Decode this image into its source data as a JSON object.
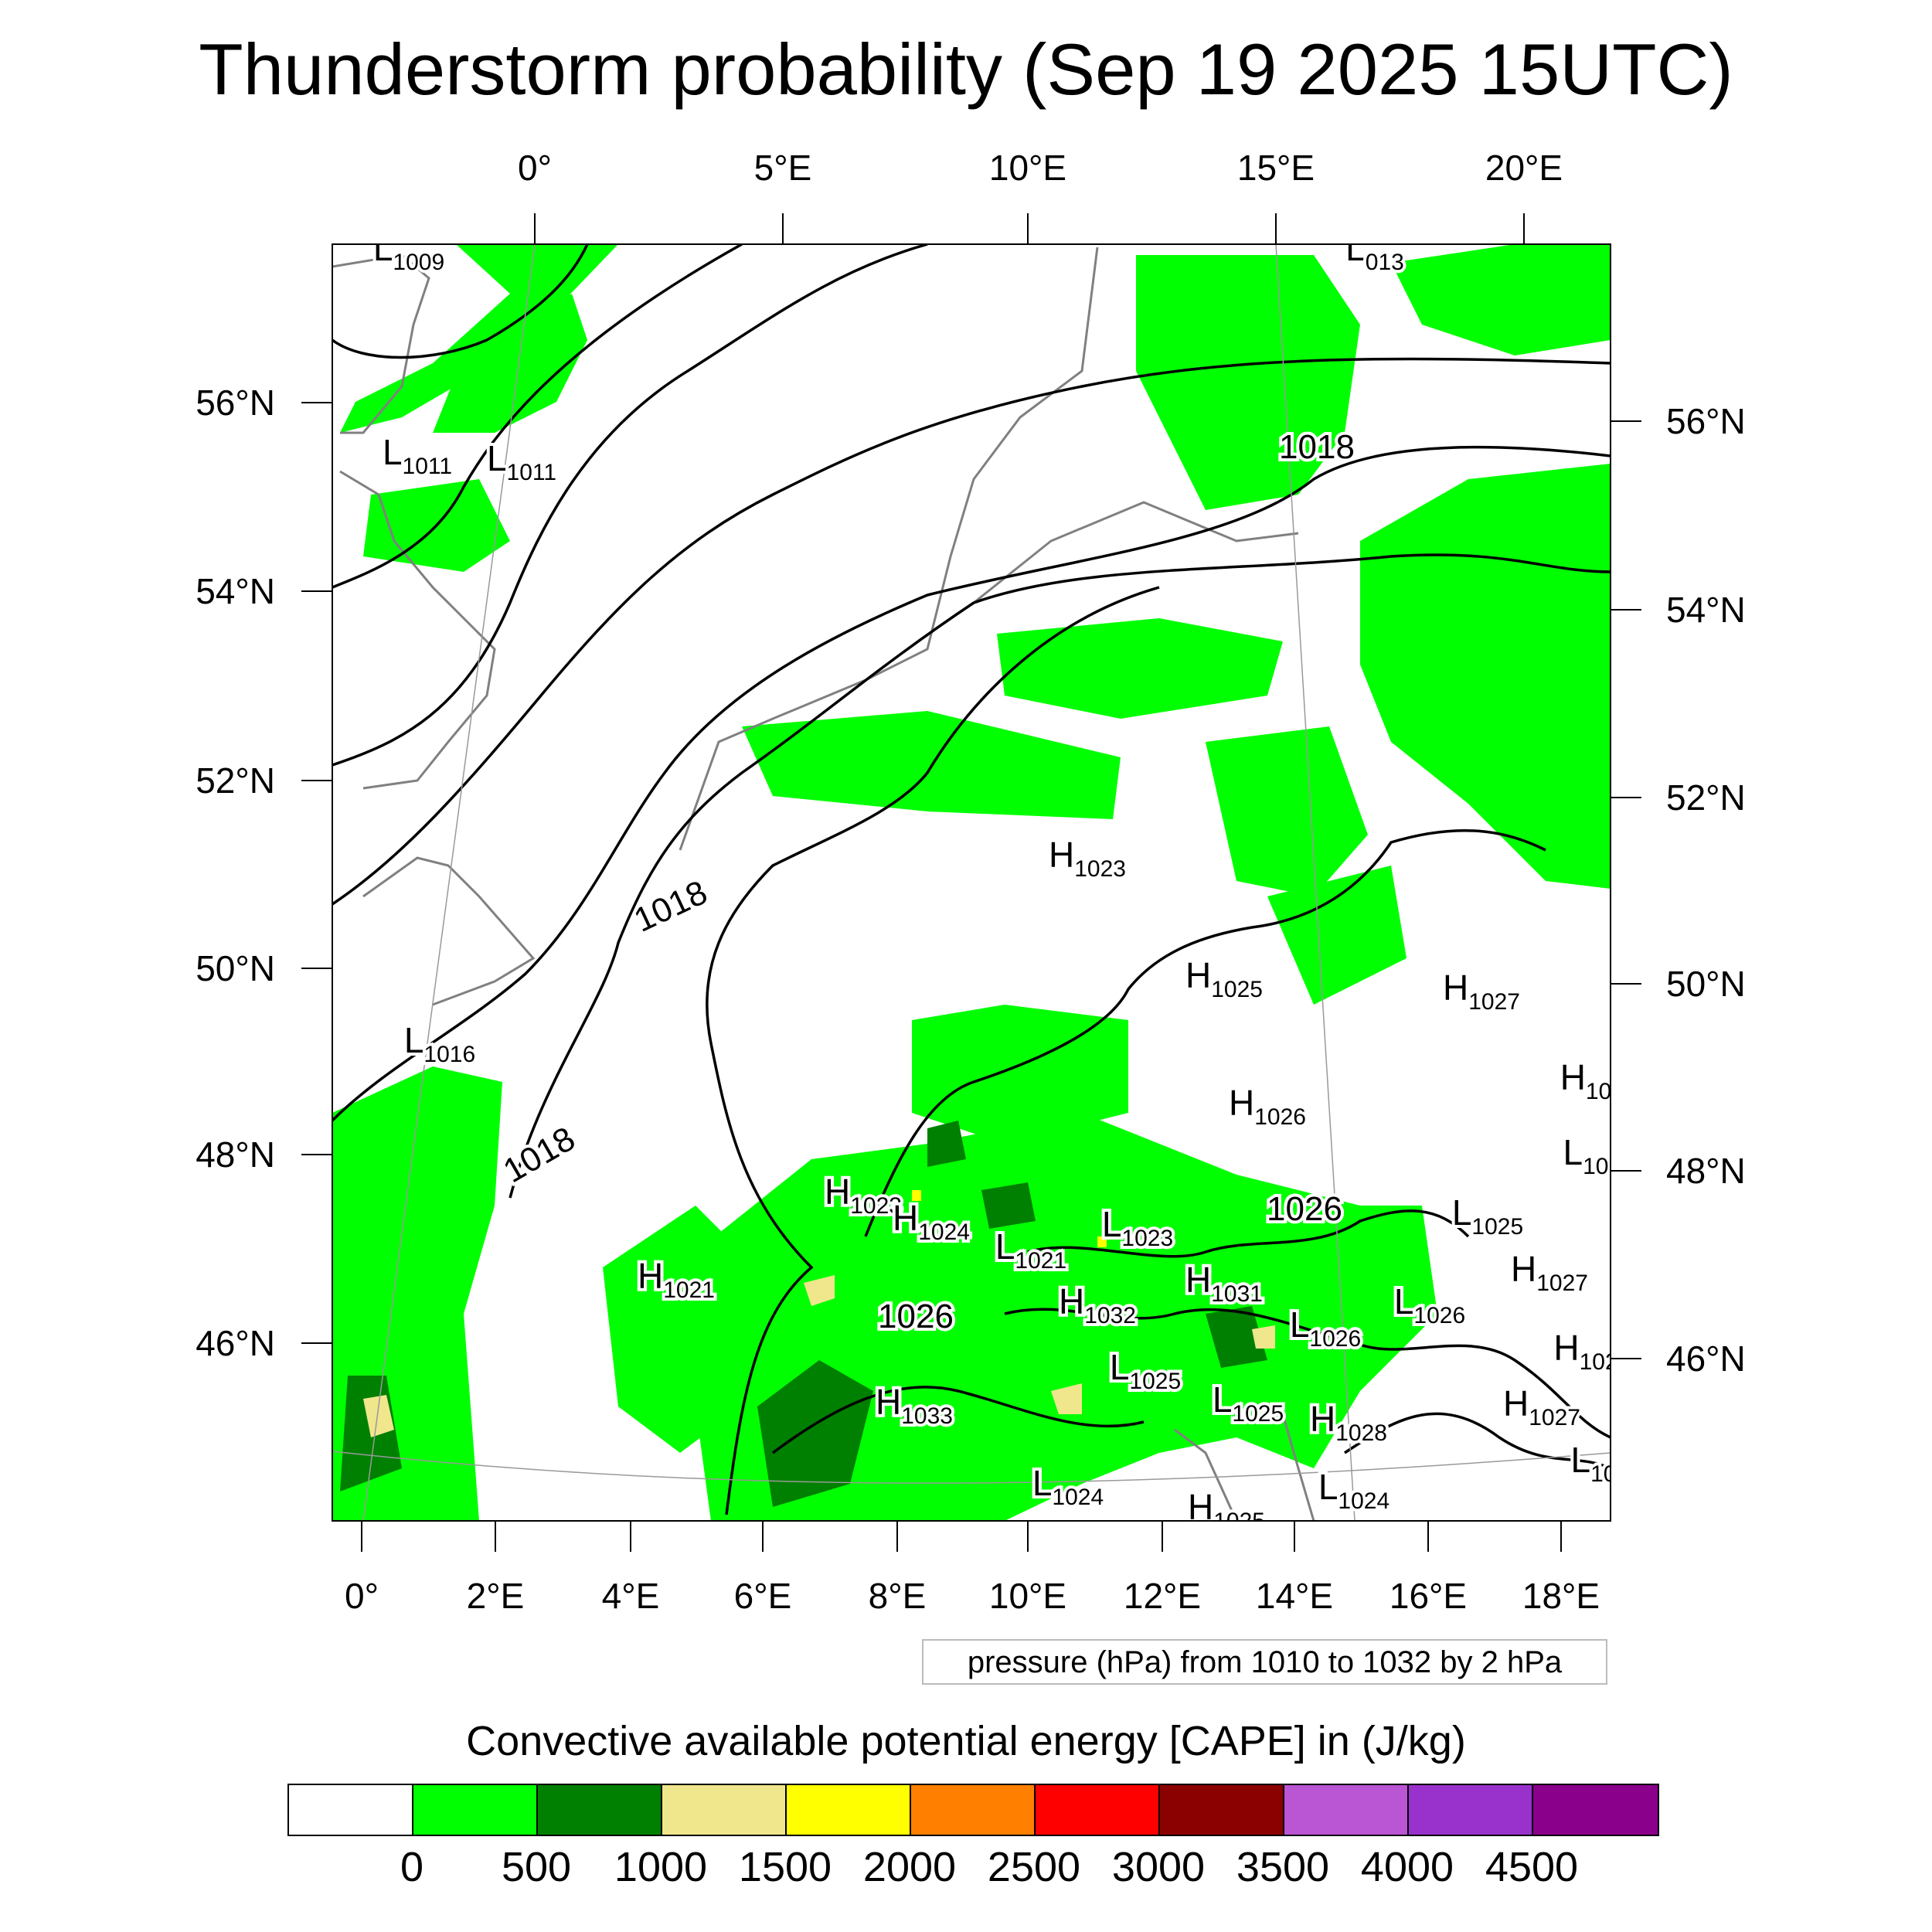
{
  "title": "Thunderstorm probability (Sep 19 2025 15UTC)",
  "axes": {
    "top_lon": [
      "0°",
      "5°E",
      "10°E",
      "15°E",
      "20°E"
    ],
    "left_lat": [
      "56°N",
      "54°N",
      "52°N",
      "50°N",
      "48°N",
      "46°N"
    ],
    "right_lat": [
      "56°N",
      "54°N",
      "52°N",
      "50°N",
      "48°N",
      "46°N"
    ],
    "bottom_lon": [
      "0°",
      "2°E",
      "4°E",
      "6°E",
      "8°E",
      "10°E",
      "12°E",
      "14°E",
      "16°E",
      "18°E"
    ]
  },
  "map": {
    "pressure_labels": [
      {
        "k": "L",
        "v": "1009"
      },
      {
        "k": "L",
        "v": "013"
      },
      {
        "k": "L",
        "v": "1011"
      },
      {
        "k": "L",
        "v": "1011"
      },
      {
        "k": "",
        "v": "1018"
      },
      {
        "k": "",
        "v": "1018"
      },
      {
        "k": "",
        "v": "1018"
      },
      {
        "k": "L",
        "v": "1016"
      },
      {
        "k": "H",
        "v": "1023"
      },
      {
        "k": "H",
        "v": "1025"
      },
      {
        "k": "H",
        "v": "1027"
      },
      {
        "k": "H",
        "v": "10"
      },
      {
        "k": "H",
        "v": "1026"
      },
      {
        "k": "L",
        "v": "10"
      },
      {
        "k": "H",
        "v": "1023"
      },
      {
        "k": "H",
        "v": "1024"
      },
      {
        "k": "L",
        "v": "1021"
      },
      {
        "k": "L",
        "v": "1023"
      },
      {
        "k": "",
        "v": "1026"
      },
      {
        "k": "L",
        "v": "1025"
      },
      {
        "k": "H",
        "v": "1027"
      },
      {
        "k": "H",
        "v": "1021"
      },
      {
        "k": "H",
        "v": "1031"
      },
      {
        "k": "H",
        "v": "1032"
      },
      {
        "k": "L",
        "v": "1026"
      },
      {
        "k": "L",
        "v": "1026"
      },
      {
        "k": "H",
        "v": "102"
      },
      {
        "k": "",
        "v": "1026"
      },
      {
        "k": "L",
        "v": "1025"
      },
      {
        "k": "H",
        "v": "1033"
      },
      {
        "k": "L",
        "v": "1025"
      },
      {
        "k": "H",
        "v": "1028"
      },
      {
        "k": "H",
        "v": "1027"
      },
      {
        "k": "L",
        "v": "10"
      },
      {
        "k": "L",
        "v": "1024"
      },
      {
        "k": "L",
        "v": "1024"
      },
      {
        "k": "H",
        "v": "1025"
      }
    ],
    "cape_green": "#00ff00",
    "cape_darkgreen": "#008000",
    "cape_khaki": "#f0e68c",
    "cape_yellow": "#ffff00"
  },
  "pressure_note": "pressure (hPa) from 1010 to 1032 by 2 hPa",
  "colorbar": {
    "title": "Convective available potential energy [CAPE] in (J/kg)",
    "colors": [
      "#ffffff",
      "#00ff00",
      "#008000",
      "#f0e68c",
      "#ffff00",
      "#ff8000",
      "#ff0000",
      "#8b0000",
      "#ba55d3",
      "#9932cc",
      "#8b008b"
    ],
    "ticks": [
      "0",
      "500",
      "1000",
      "1500",
      "2000",
      "2500",
      "3000",
      "3500",
      "4000",
      "4500"
    ]
  }
}
